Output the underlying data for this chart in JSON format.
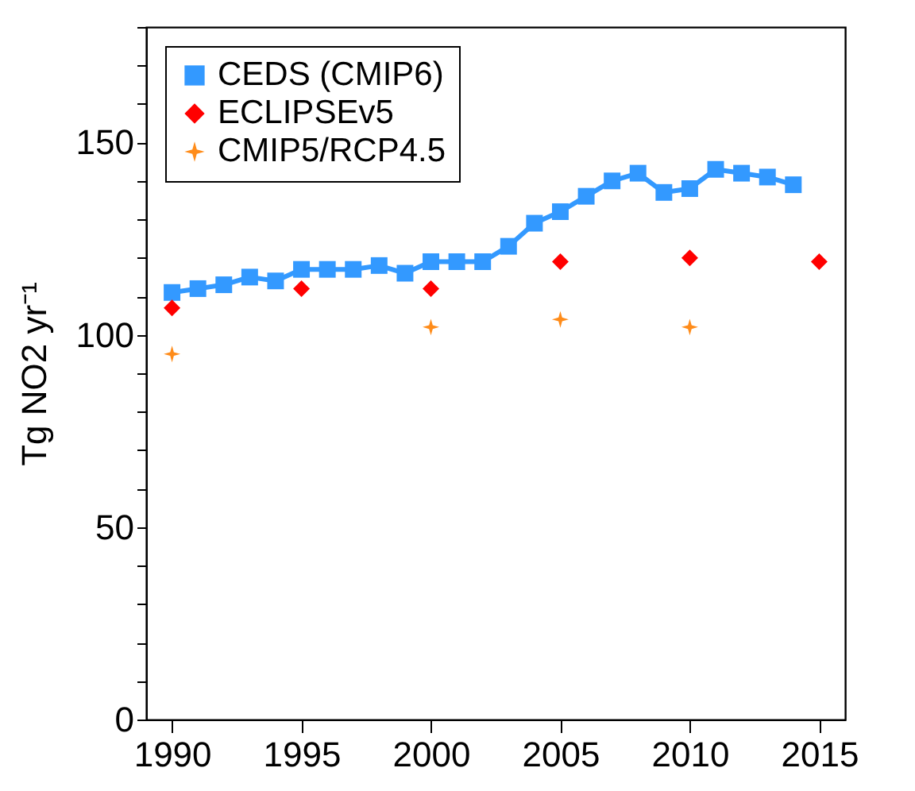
{
  "chart_data": {
    "type": "line",
    "ylabel": "Tg NO2 yr⁻¹",
    "x": [
      1990,
      1991,
      1992,
      1993,
      1994,
      1995,
      1996,
      1997,
      1998,
      1999,
      2000,
      2001,
      2002,
      2003,
      2004,
      2005,
      2006,
      2007,
      2008,
      2009,
      2010,
      2011,
      2012,
      2013,
      2014
    ],
    "series": [
      {
        "name": "CEDS (CMIP6)",
        "type": "line",
        "marker": "square",
        "color": "#3399ff",
        "values": [
          111,
          112,
          113,
          115,
          114,
          117,
          117,
          117,
          118,
          116,
          119,
          119,
          119,
          123,
          129,
          132,
          136,
          140,
          142,
          137,
          138,
          143,
          142,
          141,
          139
        ]
      },
      {
        "name": "ECLIPSEv5",
        "type": "scatter",
        "marker": "diamond",
        "color": "#ff0000",
        "x": [
          1990,
          1995,
          2000,
          2005,
          2010,
          2015
        ],
        "values": [
          107,
          112,
          112,
          119,
          120,
          119
        ]
      },
      {
        "name": "CMIP5/RCP4.5",
        "type": "scatter",
        "marker": "star",
        "color": "#ff8c1a",
        "x": [
          1990,
          2000,
          2005,
          2010
        ],
        "values": [
          95,
          102,
          104,
          102
        ]
      }
    ],
    "xlim": [
      1989,
      2016
    ],
    "xticks": [
      1990,
      1995,
      2000,
      2005,
      2010,
      2015
    ],
    "ylim": [
      0,
      180
    ],
    "yticks": [
      0,
      {
        "value": 10,
        "label": null
      },
      {
        "value": 20,
        "label": null
      },
      {
        "value": 30,
        "label": null
      },
      {
        "value": 40,
        "label": null
      },
      50,
      {
        "value": 60,
        "label": null
      },
      {
        "value": 70,
        "label": null
      },
      {
        "value": 80,
        "label": null
      },
      {
        "value": 90,
        "label": null
      },
      100,
      {
        "value": 110,
        "label": null
      },
      {
        "value": 120,
        "label": null
      },
      {
        "value": 130,
        "label": null
      },
      {
        "value": 140,
        "label": null
      },
      150,
      {
        "value": 160,
        "label": null
      },
      {
        "value": 170,
        "label": null
      },
      {
        "value": 180,
        "label": null
      }
    ],
    "legend": "top left",
    "grid": false
  }
}
